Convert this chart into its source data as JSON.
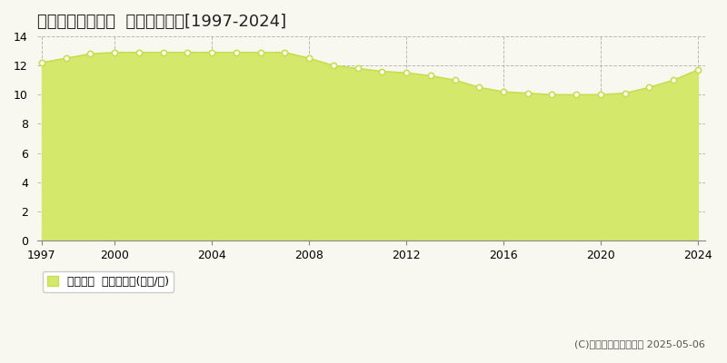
{
  "title": "武雄市武雄町永島  基準地価推移[1997-2024]",
  "years": [
    1997,
    1998,
    1999,
    2000,
    2001,
    2002,
    2003,
    2004,
    2005,
    2006,
    2007,
    2008,
    2009,
    2010,
    2011,
    2012,
    2013,
    2014,
    2015,
    2016,
    2017,
    2018,
    2019,
    2020,
    2021,
    2022,
    2023,
    2024
  ],
  "values": [
    12.2,
    12.5,
    12.8,
    12.9,
    12.9,
    12.9,
    12.9,
    12.9,
    12.9,
    12.9,
    12.9,
    12.5,
    12.0,
    11.8,
    11.6,
    11.5,
    11.3,
    11.0,
    10.5,
    10.2,
    10.1,
    10.0,
    10.0,
    10.0,
    10.1,
    10.5,
    11.0,
    11.7
  ],
  "fill_color": "#d4e96b",
  "line_color": "#c8de50",
  "marker_color": "#ffffff",
  "marker_edge_color": "#c8de50",
  "ylim": [
    0,
    14
  ],
  "yticks": [
    0,
    2,
    4,
    6,
    8,
    10,
    12,
    14
  ],
  "xticks": [
    1997,
    2000,
    2004,
    2008,
    2012,
    2016,
    2020,
    2024
  ],
  "grid_color": "#aaaaaa",
  "background_color": "#f8f8f0",
  "plot_bg_color": "#f8f8f0",
  "legend_label": "基準地価  平均坪単価(万円/坪)",
  "legend_color": "#d4e96b",
  "legend_edge_color": "#c8de50",
  "copyright_text": "(C)土地価格ドットコム 2025-05-06",
  "title_fontsize": 13,
  "axis_fontsize": 9,
  "legend_fontsize": 9
}
